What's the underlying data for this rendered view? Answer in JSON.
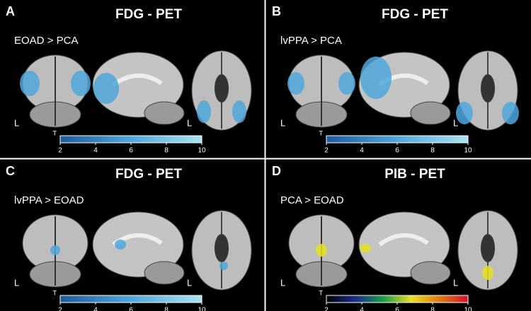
{
  "panels": [
    {
      "letter": "A",
      "title": "FDG - PET",
      "contrast": "EOAD > PCA",
      "side_labels": [
        "L",
        "L"
      ],
      "colorbar": {
        "label": "T",
        "ticks": [
          2,
          4,
          6,
          8,
          10
        ],
        "colors": [
          "#1f5a9c",
          "#4fa7dc",
          "#a9e3f2"
        ]
      }
    },
    {
      "letter": "B",
      "title": "FDG - PET",
      "contrast": "lvPPA > PCA",
      "side_labels": [
        "L",
        "L"
      ],
      "colorbar": {
        "label": "T",
        "ticks": [
          2,
          4,
          6,
          8,
          10
        ],
        "colors": [
          "#1f5a9c",
          "#4fa7dc",
          "#a9e3f2"
        ]
      }
    },
    {
      "letter": "C",
      "title": "FDG - PET",
      "contrast": "lvPPA > EOAD",
      "side_labels": [
        "L",
        "L"
      ],
      "colorbar": {
        "label": "T",
        "ticks": [
          2,
          4,
          6,
          8,
          10
        ],
        "colors": [
          "#1f5a9c",
          "#4fa7dc",
          "#a9e3f2"
        ]
      }
    },
    {
      "letter": "D",
      "title": "PIB - PET",
      "contrast": "PCA > EOAD",
      "side_labels": [
        "L",
        "L"
      ],
      "colorbar": {
        "label": "T",
        "ticks": [
          2,
          4,
          6,
          8,
          10
        ],
        "colors": [
          "#000000",
          "#1b2a8a",
          "#1a9a4a",
          "#e8e020",
          "#e07a10",
          "#d0102a"
        ]
      }
    }
  ]
}
